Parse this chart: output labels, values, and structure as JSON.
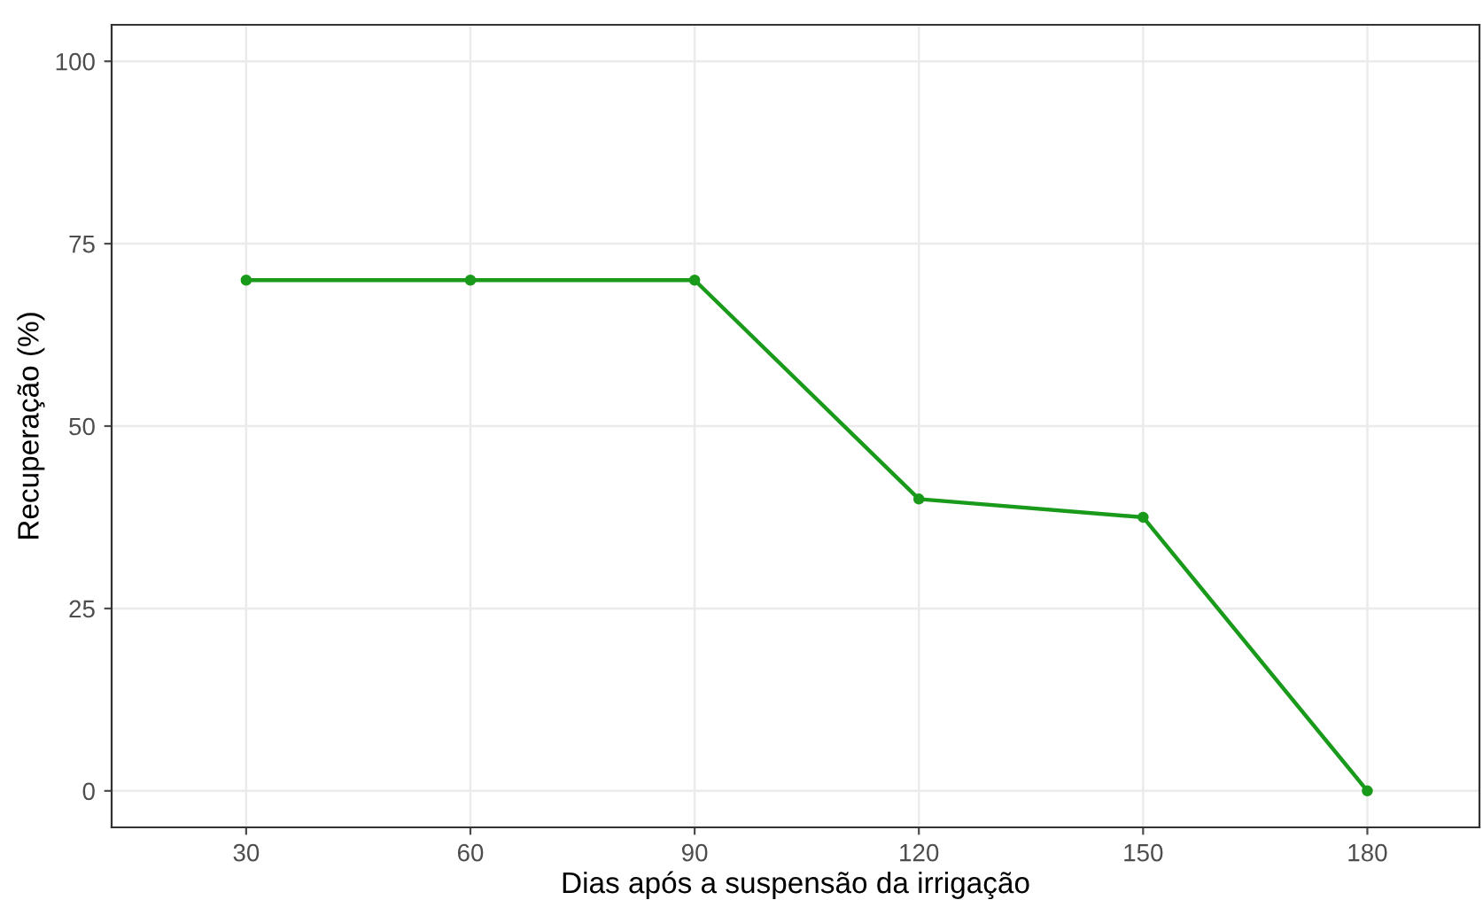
{
  "chart_data": {
    "type": "line",
    "xlabel": "Dias após a suspensão da irrigação",
    "ylabel": "Recuperação (%)",
    "x": [
      30,
      60,
      90,
      120,
      150,
      180
    ],
    "series": [
      {
        "color": "#1a9a1a",
        "values": [
          70,
          70,
          70,
          40,
          37.5,
          0
        ]
      }
    ],
    "xlim": [
      12,
      195
    ],
    "xticks": [
      30,
      60,
      90,
      120,
      150,
      180
    ],
    "ylim": [
      -5,
      105
    ],
    "yticks": [
      0,
      25,
      50,
      75,
      100
    ],
    "grid": true,
    "marker": "circle",
    "line_style": "solid"
  }
}
